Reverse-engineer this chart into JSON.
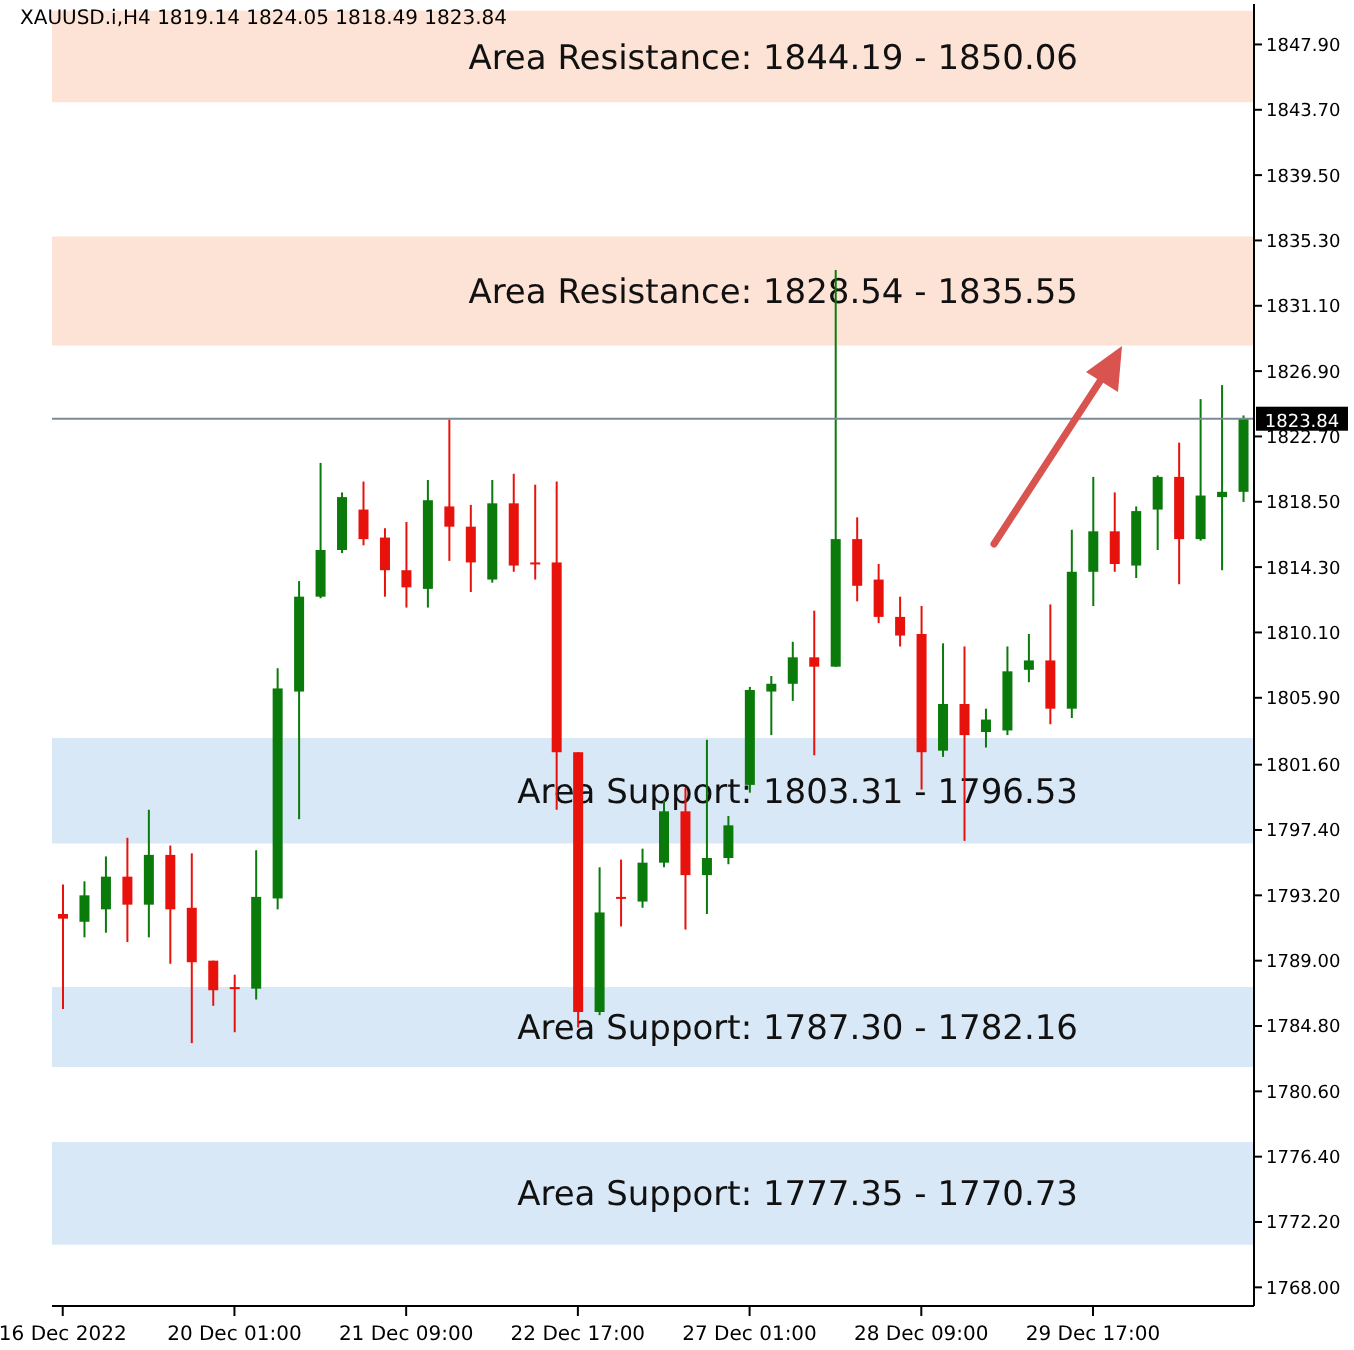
{
  "chart_data": {
    "type": "candlestick",
    "title": "XAUUSD.i,H4  1819.14 1824.05 1818.49 1823.84",
    "categories": [
      "16 Dec 2022",
      null,
      null,
      null,
      null,
      null,
      null,
      null,
      "20 Dec 01:00",
      null,
      null,
      null,
      null,
      null,
      null,
      null,
      "21 Dec 09:00",
      null,
      null,
      null,
      null,
      null,
      null,
      null,
      "22 Dec 17:00",
      null,
      null,
      null,
      null,
      null,
      null,
      null,
      "27 Dec 01:00",
      null,
      null,
      null,
      null,
      null,
      null,
      null,
      "28 Dec 09:00",
      null,
      null,
      null,
      null,
      null,
      null,
      null,
      "29 Dec 17:00",
      null,
      null,
      null,
      null,
      null,
      null,
      null
    ],
    "ohlc": [
      [
        1792.0,
        1793.9,
        1785.9,
        1791.7
      ],
      [
        1791.5,
        1794.1,
        1790.5,
        1793.2
      ],
      [
        1792.3,
        1795.7,
        1790.8,
        1794.4
      ],
      [
        1794.4,
        1796.9,
        1790.2,
        1792.6
      ],
      [
        1792.6,
        1798.7,
        1790.5,
        1795.8
      ],
      [
        1795.8,
        1796.4,
        1788.8,
        1792.3
      ],
      [
        1792.4,
        1795.9,
        1783.7,
        1788.9
      ],
      [
        1789.0,
        1789.0,
        1786.1,
        1787.1
      ],
      [
        1787.2,
        1788.1,
        1784.4,
        1787.3
      ],
      [
        1787.2,
        1796.1,
        1786.5,
        1793.1
      ],
      [
        1793.0,
        1807.8,
        1792.3,
        1806.5
      ],
      [
        1806.3,
        1813.4,
        1798.1,
        1812.4
      ],
      [
        1812.4,
        1821.0,
        1812.3,
        1815.4
      ],
      [
        1815.4,
        1819.1,
        1815.2,
        1818.8
      ],
      [
        1818.0,
        1819.8,
        1815.7,
        1816.1
      ],
      [
        1816.2,
        1816.8,
        1812.4,
        1814.1
      ],
      [
        1814.1,
        1817.2,
        1811.7,
        1813.0
      ],
      [
        1812.9,
        1819.9,
        1811.7,
        1818.6
      ],
      [
        1818.2,
        1823.8,
        1814.7,
        1816.9
      ],
      [
        1816.9,
        1818.3,
        1812.7,
        1814.6
      ],
      [
        1813.5,
        1819.9,
        1813.3,
        1818.4
      ],
      [
        1818.4,
        1820.3,
        1814.0,
        1814.4
      ],
      [
        1814.6,
        1819.6,
        1813.5,
        1814.5
      ],
      [
        1814.6,
        1819.8,
        1798.7,
        1802.4
      ],
      [
        1802.4,
        1802.4,
        1784.7,
        1785.7
      ],
      [
        1785.7,
        1795.0,
        1785.5,
        1792.1
      ],
      [
        1793.1,
        1795.5,
        1791.2,
        1793.0
      ],
      [
        1792.8,
        1796.2,
        1792.4,
        1795.3
      ],
      [
        1795.3,
        1799.3,
        1795.0,
        1798.6
      ],
      [
        1798.6,
        1800.1,
        1791.0,
        1794.5
      ],
      [
        1794.5,
        1803.2,
        1792.0,
        1795.6
      ],
      [
        1795.6,
        1798.3,
        1795.2,
        1797.7
      ],
      [
        1800.3,
        1806.6,
        1799.8,
        1806.4
      ],
      [
        1806.3,
        1807.3,
        1803.5,
        1806.8
      ],
      [
        1806.8,
        1809.5,
        1805.7,
        1808.5
      ],
      [
        1808.5,
        1811.5,
        1802.2,
        1807.9
      ],
      [
        1807.9,
        1833.4,
        1807.9,
        1816.1
      ],
      [
        1816.1,
        1817.5,
        1812.1,
        1813.1
      ],
      [
        1813.5,
        1814.5,
        1810.7,
        1811.1
      ],
      [
        1811.1,
        1812.4,
        1809.2,
        1809.9
      ],
      [
        1810.0,
        1811.8,
        1800.0,
        1802.4
      ],
      [
        1802.5,
        1809.4,
        1802.1,
        1805.5
      ],
      [
        1805.5,
        1809.2,
        1796.7,
        1803.5
      ],
      [
        1803.7,
        1805.2,
        1802.7,
        1804.5
      ],
      [
        1803.8,
        1809.2,
        1803.5,
        1807.6
      ],
      [
        1807.7,
        1810.0,
        1806.9,
        1808.3
      ],
      [
        1808.3,
        1811.9,
        1804.2,
        1805.2
      ],
      [
        1805.2,
        1816.7,
        1804.6,
        1814.0
      ],
      [
        1814.0,
        1820.1,
        1811.8,
        1816.6
      ],
      [
        1816.6,
        1819.1,
        1814.0,
        1814.5
      ],
      [
        1814.4,
        1818.2,
        1813.6,
        1817.9
      ],
      [
        1818.0,
        1820.2,
        1815.4,
        1820.1
      ],
      [
        1820.1,
        1822.3,
        1813.2,
        1816.1
      ],
      [
        1816.1,
        1825.1,
        1816.0,
        1818.9
      ],
      [
        1818.8,
        1826.0,
        1814.1,
        1819.14
      ],
      [
        1819.14,
        1824.05,
        1818.49,
        1823.84
      ]
    ],
    "colors": [
      "#e8120c",
      "#0a7a0a",
      "#0a7a0a",
      "#e8120c",
      "#0a7a0a",
      "#e8120c",
      "#e8120c",
      "#e8120c",
      "#e8120c",
      "#0a7a0a",
      "#0a7a0a",
      "#0a7a0a",
      "#0a7a0a",
      "#0a7a0a",
      "#e8120c",
      "#e8120c",
      "#e8120c",
      "#0a7a0a",
      "#e8120c",
      "#e8120c",
      "#0a7a0a",
      "#e8120c",
      "#e8120c",
      "#e8120c",
      "#e8120c",
      "#0a7a0a",
      "#e8120c",
      "#0a7a0a",
      "#0a7a0a",
      "#e8120c",
      "#0a7a0a",
      "#0a7a0a",
      "#0a7a0a",
      "#0a7a0a",
      "#0a7a0a",
      "#e8120c",
      "#0a7a0a",
      "#e8120c",
      "#e8120c",
      "#e8120c",
      "#e8120c",
      "#0a7a0a",
      "#e8120c",
      "#0a7a0a",
      "#0a7a0a",
      "#0a7a0a",
      "#e8120c",
      "#0a7a0a",
      "#0a7a0a",
      "#e8120c",
      "#0a7a0a",
      "#0a7a0a",
      "#e8120c",
      "#0a7a0a",
      "#0a7a0a",
      "#0a7a0a"
    ],
    "ylim": [
      1766.8,
      1850.5
    ],
    "yticks": [
      {
        "value": 1768,
        "label": "1768.00"
      },
      {
        "value": 1772.2,
        "label": "1772.20"
      },
      {
        "value": 1776.4,
        "label": "1776.40"
      },
      {
        "value": 1780.6,
        "label": "1780.60"
      },
      {
        "value": 1784.8,
        "label": "1784.80"
      },
      {
        "value": 1789,
        "label": "1789.00"
      },
      {
        "value": 1793.2,
        "label": "1793.20"
      },
      {
        "value": 1797.4,
        "label": "1797.40"
      },
      {
        "value": 1801.6,
        "label": "1801.60"
      },
      {
        "value": 1805.9,
        "label": "1805.90"
      },
      {
        "value": 1810.1,
        "label": "1810.10"
      },
      {
        "value": 1814.3,
        "label": "1814.30"
      },
      {
        "value": 1818.5,
        "label": "1818.50"
      },
      {
        "value": 1822.7,
        "label": "1822.70"
      },
      {
        "value": 1826.9,
        "label": "1826.90"
      },
      {
        "value": 1831.1,
        "label": "1831.10"
      },
      {
        "value": 1835.3,
        "label": "1835.30"
      },
      {
        "value": 1839.5,
        "label": "1839.50"
      },
      {
        "value": 1843.7,
        "label": "1843.70"
      },
      {
        "value": 1847.9,
        "label": "1847.90"
      }
    ],
    "ref_lines": [
      {
        "axis": "y",
        "value": 1823.84,
        "label": "1823.84",
        "color": "#7a8a99"
      }
    ],
    "bands": [
      {
        "axis": "y",
        "from": 1844.19,
        "to": 1850.06,
        "label": "Area Resistance: 1844.19 - 1850.06",
        "color": "#fde3d6"
      },
      {
        "axis": "y",
        "from": 1828.54,
        "to": 1835.55,
        "label": "Area Resistance: 1828.54 - 1835.55",
        "color": "#fde3d6"
      },
      {
        "axis": "y",
        "from": 1796.53,
        "to": 1803.31,
        "label": "Area Support: 1803.31 - 1796.53",
        "color": "#d8e8f7"
      },
      {
        "axis": "y",
        "from": 1782.16,
        "to": 1787.3,
        "label": "Area Support: 1787.30 - 1782.16",
        "color": "#d8e8f7"
      },
      {
        "axis": "y",
        "from": 1770.73,
        "to": 1777.35,
        "label": "Area Support: 1777.35 - 1770.73",
        "color": "#d8e8f7"
      }
    ],
    "grid": false,
    "legend": false
  }
}
